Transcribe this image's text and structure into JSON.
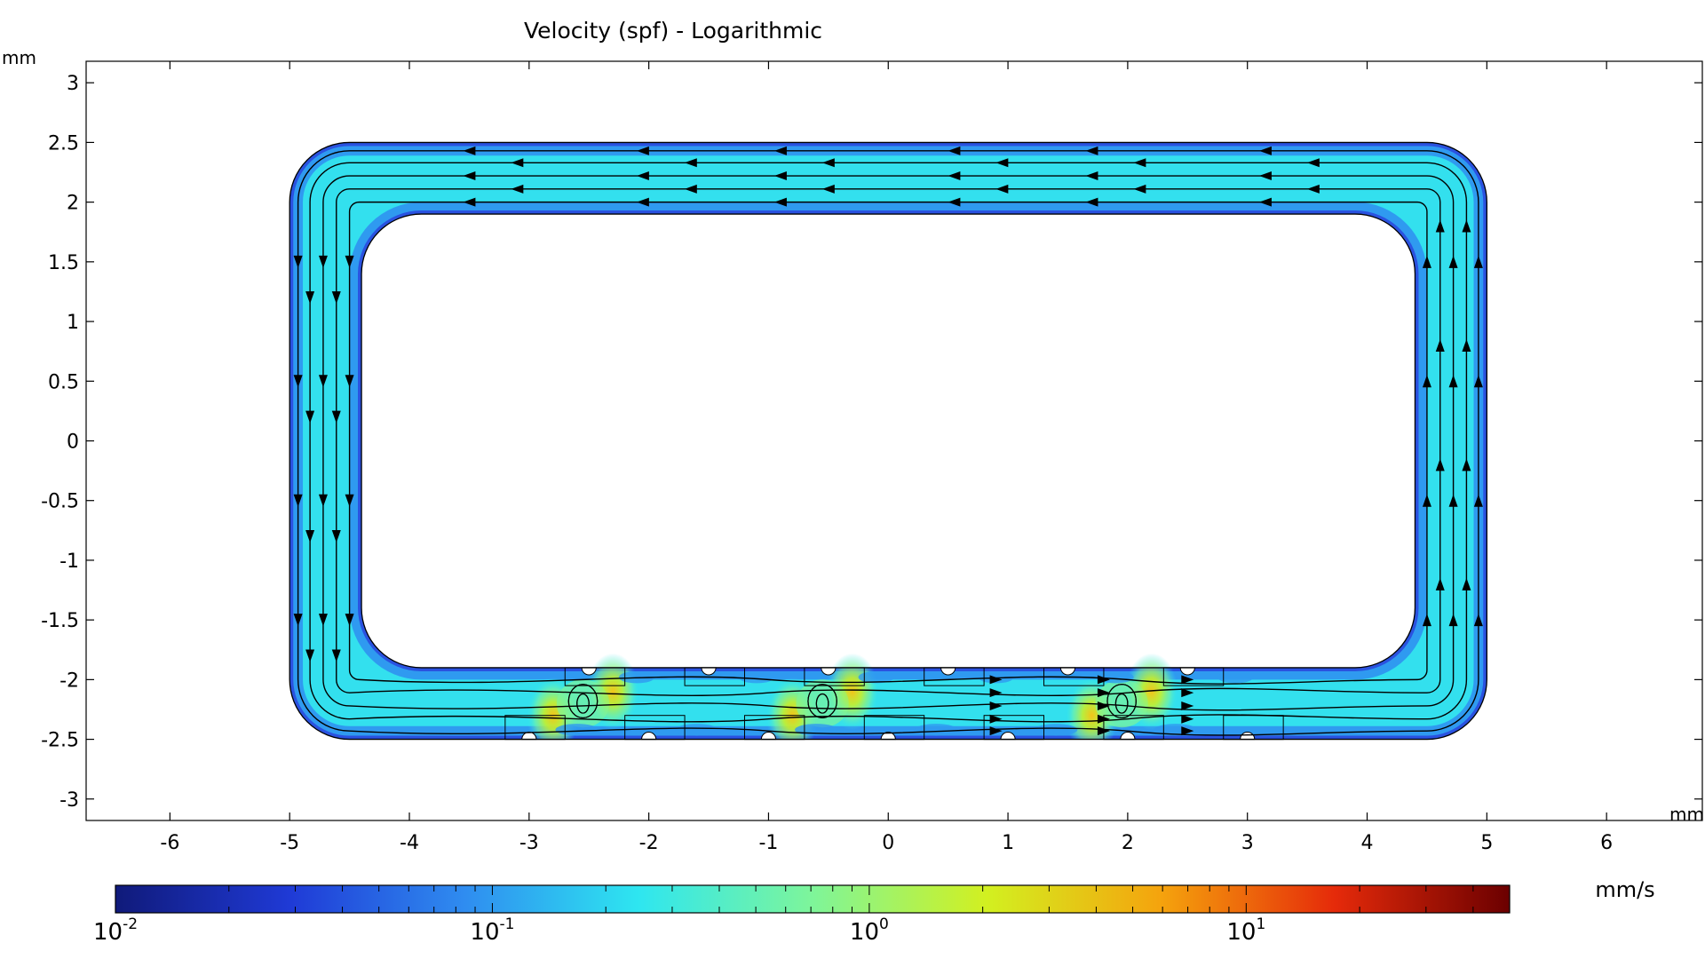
{
  "chart_data": {
    "type": "heatmap",
    "title": "Velocity (spf) - Logarithmic",
    "xlabel": "mm",
    "ylabel": "mm",
    "xlim": [
      -6.7,
      6.8
    ],
    "ylim": [
      -3.18,
      3.18
    ],
    "x_ticks": [
      -6,
      -5,
      -4,
      -3,
      -2,
      -1,
      0,
      1,
      2,
      3,
      4,
      5,
      6
    ],
    "x_tick_labels": [
      "-6",
      "-5",
      "-4",
      "-3",
      "-2",
      "-1",
      "0",
      "1",
      "2",
      "3",
      "4",
      "5",
      "6"
    ],
    "y_ticks": [
      3,
      2.5,
      2,
      1.5,
      1,
      0.5,
      0,
      -0.5,
      -1,
      -1.5,
      -2,
      -2.5,
      -3
    ],
    "y_tick_labels": [
      "3",
      "2.5",
      "2",
      "1.5",
      "1",
      "0.5",
      "0",
      "-0.5",
      "-1",
      "-1.5",
      "-2",
      "-2.5",
      "-3"
    ],
    "geometry": {
      "outer": {
        "xmin": -5.0,
        "xmax": 5.0,
        "ymin": -2.5,
        "ymax": 2.5,
        "corner_radius": 0.5
      },
      "inner": {
        "xmin": -4.4,
        "xmax": 4.4,
        "ymin": -1.9,
        "ymax": 1.9,
        "corner_radius": 0.5
      },
      "bottom_channel_features_x": [
        -3.0,
        -2.0,
        -1.0,
        0.0,
        1.0,
        2.0,
        3.0
      ],
      "circulation_direction": "counterclockwise"
    },
    "field": {
      "quantity": "Velocity (spf)",
      "scale": "log",
      "typical_channel_value": 0.25,
      "wall_value": 0.02,
      "hotspot_peak_value": 2.0,
      "hotspot_x": [
        -2.8,
        -2.3,
        -0.8,
        -0.3,
        1.7,
        2.2
      ]
    },
    "colorbar": {
      "unit": "mm/s",
      "scale": "log",
      "range": [
        0.01,
        50
      ],
      "colormap": [
        "#101a7a",
        "#1f3ad6",
        "#2f8cf0",
        "#2ee6f0",
        "#7ef59a",
        "#d2f020",
        "#f5a30d",
        "#e52a0a",
        "#6b0000"
      ],
      "tick_labels": [
        {
          "value": 0.01,
          "base": "10",
          "exponent": "-2"
        },
        {
          "value": 0.1,
          "base": "10",
          "exponent": "-1"
        },
        {
          "value": 1,
          "base": "10",
          "exponent": "0"
        },
        {
          "value": 10,
          "base": "10",
          "exponent": "1"
        }
      ]
    }
  }
}
